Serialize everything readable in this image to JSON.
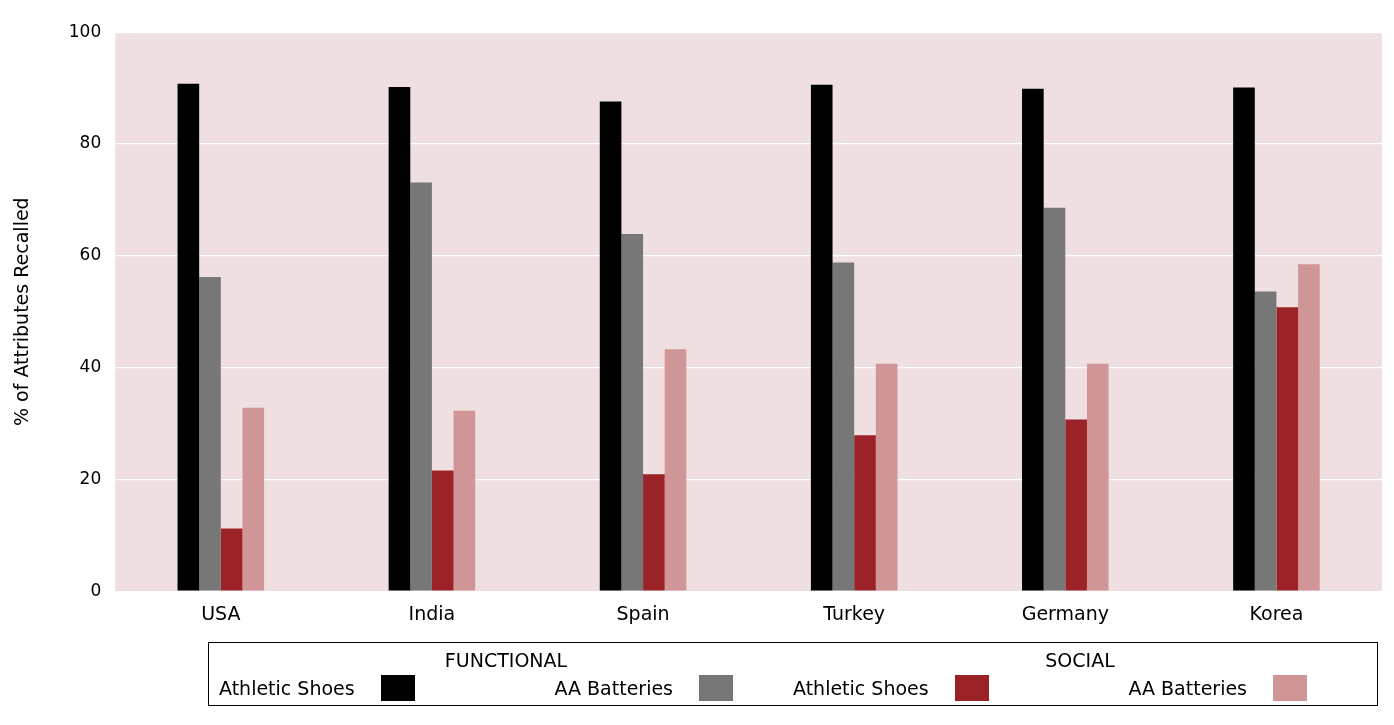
{
  "chart_data": {
    "type": "bar",
    "ylabel": "% of Attributes Recalled",
    "categories": [
      "USA",
      "India",
      "Spain",
      "Turkey",
      "Germany",
      "Korea"
    ],
    "series": [
      {
        "name": "Athletic Shoes",
        "color": "#000000",
        "values": [
          90.8,
          90.2,
          87.6,
          90.6,
          89.9,
          90.1
        ]
      },
      {
        "name": "AA Batteries",
        "color": "#777777",
        "values": [
          56.2,
          73.1,
          63.9,
          58.8,
          68.6,
          53.6
        ]
      },
      {
        "name": "Athletic Shoes",
        "color": "#9b2226",
        "values": [
          11.2,
          21.6,
          20.9,
          27.9,
          30.7,
          50.8
        ]
      },
      {
        "name": "AA Batteries",
        "color": "#d09596",
        "values": [
          32.8,
          32.3,
          43.3,
          40.7,
          40.7,
          58.5
        ]
      }
    ],
    "annotations": [
      "FUNCTIONAL",
      "SOCIAL"
    ],
    "ylim": [
      0,
      100
    ],
    "yticks": [
      0,
      20,
      40,
      60,
      80,
      100
    ],
    "grid": "y",
    "legend": "bottom"
  }
}
